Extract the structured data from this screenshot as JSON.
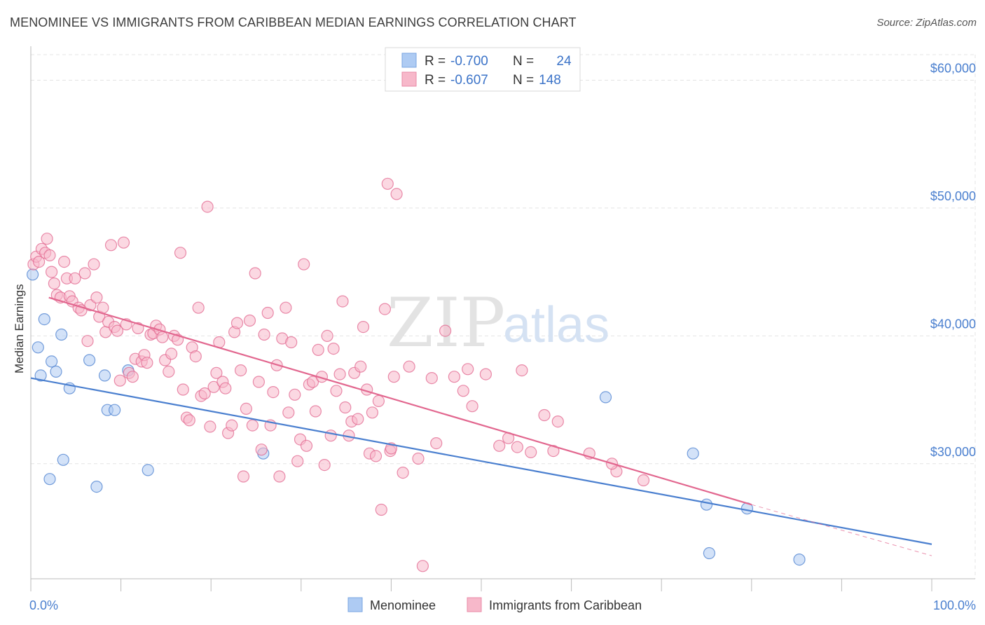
{
  "header": {
    "title": "MENOMINEE VS IMMIGRANTS FROM CARIBBEAN MEDIAN EARNINGS CORRELATION CHART",
    "source": "Source: ZipAtlas.com"
  },
  "watermark": {
    "zip": "ZIP",
    "atlas": "atlas"
  },
  "legend_top": {
    "rows": [
      {
        "r_label": "R =",
        "r_value": "-0.700",
        "n_label": "N =",
        "n_value": "24",
        "color": "#aecbf3"
      },
      {
        "r_label": "R =",
        "r_value": "-0.607",
        "n_label": "N =",
        "n_value": "148",
        "color": "#f7b8ca"
      }
    ]
  },
  "legend_bottom": {
    "items": [
      {
        "label": "Menominee",
        "color": "#aecbf3"
      },
      {
        "label": "Immigrants from Caribbean",
        "color": "#f7b8ca"
      }
    ]
  },
  "chart_data": {
    "type": "scatter",
    "title": "MENOMINEE VS IMMIGRANTS FROM CARIBBEAN MEDIAN EARNINGS CORRELATION CHART",
    "xlabel": "",
    "ylabel": "Median Earnings",
    "xlim": [
      0,
      100
    ],
    "ylim": [
      21000,
      62000
    ],
    "x_tick_labels": [
      "0.0%",
      "100.0%"
    ],
    "y_ticks": [
      30000,
      40000,
      50000,
      60000
    ],
    "y_tick_labels": [
      "$30,000",
      "$40,000",
      "$50,000",
      "$60,000"
    ],
    "grid": true,
    "legend_position": "top-center",
    "series": [
      {
        "name": "Menominee",
        "color": "#4a7fcf",
        "fill": "#aecbf3",
        "r": -0.7,
        "n": 24,
        "trend": {
          "x": [
            0,
            100
          ],
          "y": [
            36700,
            23700
          ]
        },
        "points": [
          [
            0.2,
            44800
          ],
          [
            1.1,
            36900
          ],
          [
            0.8,
            39100
          ],
          [
            1.5,
            41300
          ],
          [
            2.3,
            38000
          ],
          [
            2.8,
            37200
          ],
          [
            3.4,
            40100
          ],
          [
            4.3,
            35900
          ],
          [
            3.6,
            30300
          ],
          [
            2.1,
            28800
          ],
          [
            6.5,
            38100
          ],
          [
            8.2,
            36900
          ],
          [
            8.5,
            34200
          ],
          [
            9.3,
            34200
          ],
          [
            10.8,
            37300
          ],
          [
            7.3,
            28200
          ],
          [
            13.0,
            29500
          ],
          [
            25.8,
            30800
          ],
          [
            63.8,
            35200
          ],
          [
            73.5,
            30800
          ],
          [
            75.0,
            26800
          ],
          [
            75.3,
            23000
          ],
          [
            79.5,
            26500
          ],
          [
            85.3,
            22500
          ]
        ]
      },
      {
        "name": "Immigrants from Caribbean",
        "color": "#e2678f",
        "fill": "#f7b8ca",
        "r": -0.607,
        "n": 148,
        "trend": {
          "x": [
            2,
            80
          ],
          "y": [
            43000,
            26800
          ]
        },
        "trend_dashed": {
          "x": [
            80,
            100
          ],
          "y": [
            26800,
            22800
          ]
        },
        "points": [
          [
            0.3,
            45600
          ],
          [
            0.6,
            46200
          ],
          [
            0.9,
            45800
          ],
          [
            1.2,
            46800
          ],
          [
            1.6,
            46500
          ],
          [
            1.8,
            47600
          ],
          [
            2.1,
            46300
          ],
          [
            2.3,
            45000
          ],
          [
            2.6,
            44100
          ],
          [
            2.9,
            43200
          ],
          [
            3.3,
            43000
          ],
          [
            3.7,
            45800
          ],
          [
            4.0,
            44500
          ],
          [
            4.3,
            43100
          ],
          [
            4.6,
            42700
          ],
          [
            4.9,
            44500
          ],
          [
            5.3,
            42200
          ],
          [
            5.6,
            42000
          ],
          [
            6.0,
            44900
          ],
          [
            6.3,
            39600
          ],
          [
            6.6,
            42400
          ],
          [
            7.0,
            45600
          ],
          [
            7.3,
            43000
          ],
          [
            7.6,
            41500
          ],
          [
            8.0,
            42200
          ],
          [
            8.3,
            40300
          ],
          [
            8.6,
            41100
          ],
          [
            8.9,
            47100
          ],
          [
            9.3,
            40700
          ],
          [
            9.6,
            40400
          ],
          [
            9.9,
            36500
          ],
          [
            10.3,
            47300
          ],
          [
            10.6,
            40900
          ],
          [
            10.9,
            37100
          ],
          [
            11.3,
            36800
          ],
          [
            11.6,
            38200
          ],
          [
            11.9,
            40600
          ],
          [
            12.3,
            38000
          ],
          [
            12.6,
            38500
          ],
          [
            12.9,
            37900
          ],
          [
            13.3,
            40100
          ],
          [
            13.6,
            40200
          ],
          [
            13.9,
            40800
          ],
          [
            14.3,
            40500
          ],
          [
            14.6,
            39900
          ],
          [
            14.9,
            38100
          ],
          [
            15.3,
            37200
          ],
          [
            15.6,
            38600
          ],
          [
            15.9,
            40000
          ],
          [
            16.3,
            39700
          ],
          [
            16.6,
            46500
          ],
          [
            16.9,
            35800
          ],
          [
            17.3,
            33600
          ],
          [
            17.6,
            33400
          ],
          [
            17.9,
            39100
          ],
          [
            18.3,
            38400
          ],
          [
            18.6,
            42200
          ],
          [
            18.9,
            35300
          ],
          [
            19.3,
            35500
          ],
          [
            19.6,
            50100
          ],
          [
            19.9,
            32900
          ],
          [
            20.3,
            36000
          ],
          [
            20.6,
            37100
          ],
          [
            20.9,
            39500
          ],
          [
            21.3,
            36400
          ],
          [
            21.6,
            35900
          ],
          [
            21.9,
            32400
          ],
          [
            22.3,
            33000
          ],
          [
            22.6,
            40300
          ],
          [
            22.9,
            41000
          ],
          [
            23.3,
            37300
          ],
          [
            23.6,
            29000
          ],
          [
            23.9,
            34300
          ],
          [
            24.3,
            41200
          ],
          [
            24.6,
            33000
          ],
          [
            24.9,
            44900
          ],
          [
            25.3,
            36400
          ],
          [
            25.6,
            31100
          ],
          [
            25.9,
            40100
          ],
          [
            26.3,
            41800
          ],
          [
            26.6,
            33000
          ],
          [
            26.9,
            35600
          ],
          [
            27.3,
            37700
          ],
          [
            27.6,
            29000
          ],
          [
            27.9,
            39800
          ],
          [
            28.3,
            42200
          ],
          [
            28.6,
            34000
          ],
          [
            28.9,
            39500
          ],
          [
            29.3,
            35400
          ],
          [
            29.6,
            30200
          ],
          [
            29.9,
            31900
          ],
          [
            30.3,
            45600
          ],
          [
            30.6,
            31400
          ],
          [
            30.9,
            36200
          ],
          [
            31.3,
            36400
          ],
          [
            31.6,
            34100
          ],
          [
            31.9,
            38900
          ],
          [
            32.3,
            36800
          ],
          [
            32.6,
            29900
          ],
          [
            32.9,
            40000
          ],
          [
            33.3,
            32200
          ],
          [
            33.6,
            39000
          ],
          [
            33.9,
            35700
          ],
          [
            34.3,
            37000
          ],
          [
            34.6,
            42700
          ],
          [
            34.9,
            34400
          ],
          [
            35.3,
            32200
          ],
          [
            35.6,
            33300
          ],
          [
            35.9,
            37100
          ],
          [
            36.3,
            33500
          ],
          [
            36.6,
            37600
          ],
          [
            36.9,
            40700
          ],
          [
            37.3,
            35800
          ],
          [
            37.6,
            30800
          ],
          [
            37.9,
            34000
          ],
          [
            38.3,
            30600
          ],
          [
            38.6,
            34900
          ],
          [
            38.9,
            26400
          ],
          [
            39.3,
            42100
          ],
          [
            39.6,
            51900
          ],
          [
            39.9,
            31000
          ],
          [
            40.3,
            36800
          ],
          [
            40.6,
            51100
          ],
          [
            41.3,
            29300
          ],
          [
            42.0,
            37600
          ],
          [
            43.0,
            30400
          ],
          [
            43.5,
            22000
          ],
          [
            45.0,
            31600
          ],
          [
            46.0,
            40400
          ],
          [
            47.0,
            36800
          ],
          [
            48.0,
            35700
          ],
          [
            49.0,
            34500
          ],
          [
            50.5,
            37000
          ],
          [
            52.0,
            31400
          ],
          [
            53.0,
            32000
          ],
          [
            54.5,
            37300
          ],
          [
            55.5,
            30900
          ],
          [
            57.0,
            33800
          ],
          [
            58.0,
            31000
          ],
          [
            58.5,
            33300
          ],
          [
            62.0,
            30800
          ],
          [
            65.0,
            29400
          ],
          [
            68.0,
            28700
          ],
          [
            48.5,
            37400
          ],
          [
            54.0,
            31300
          ],
          [
            64.5,
            30000
          ],
          [
            44.5,
            36700
          ],
          [
            40.0,
            31200
          ]
        ]
      }
    ]
  }
}
